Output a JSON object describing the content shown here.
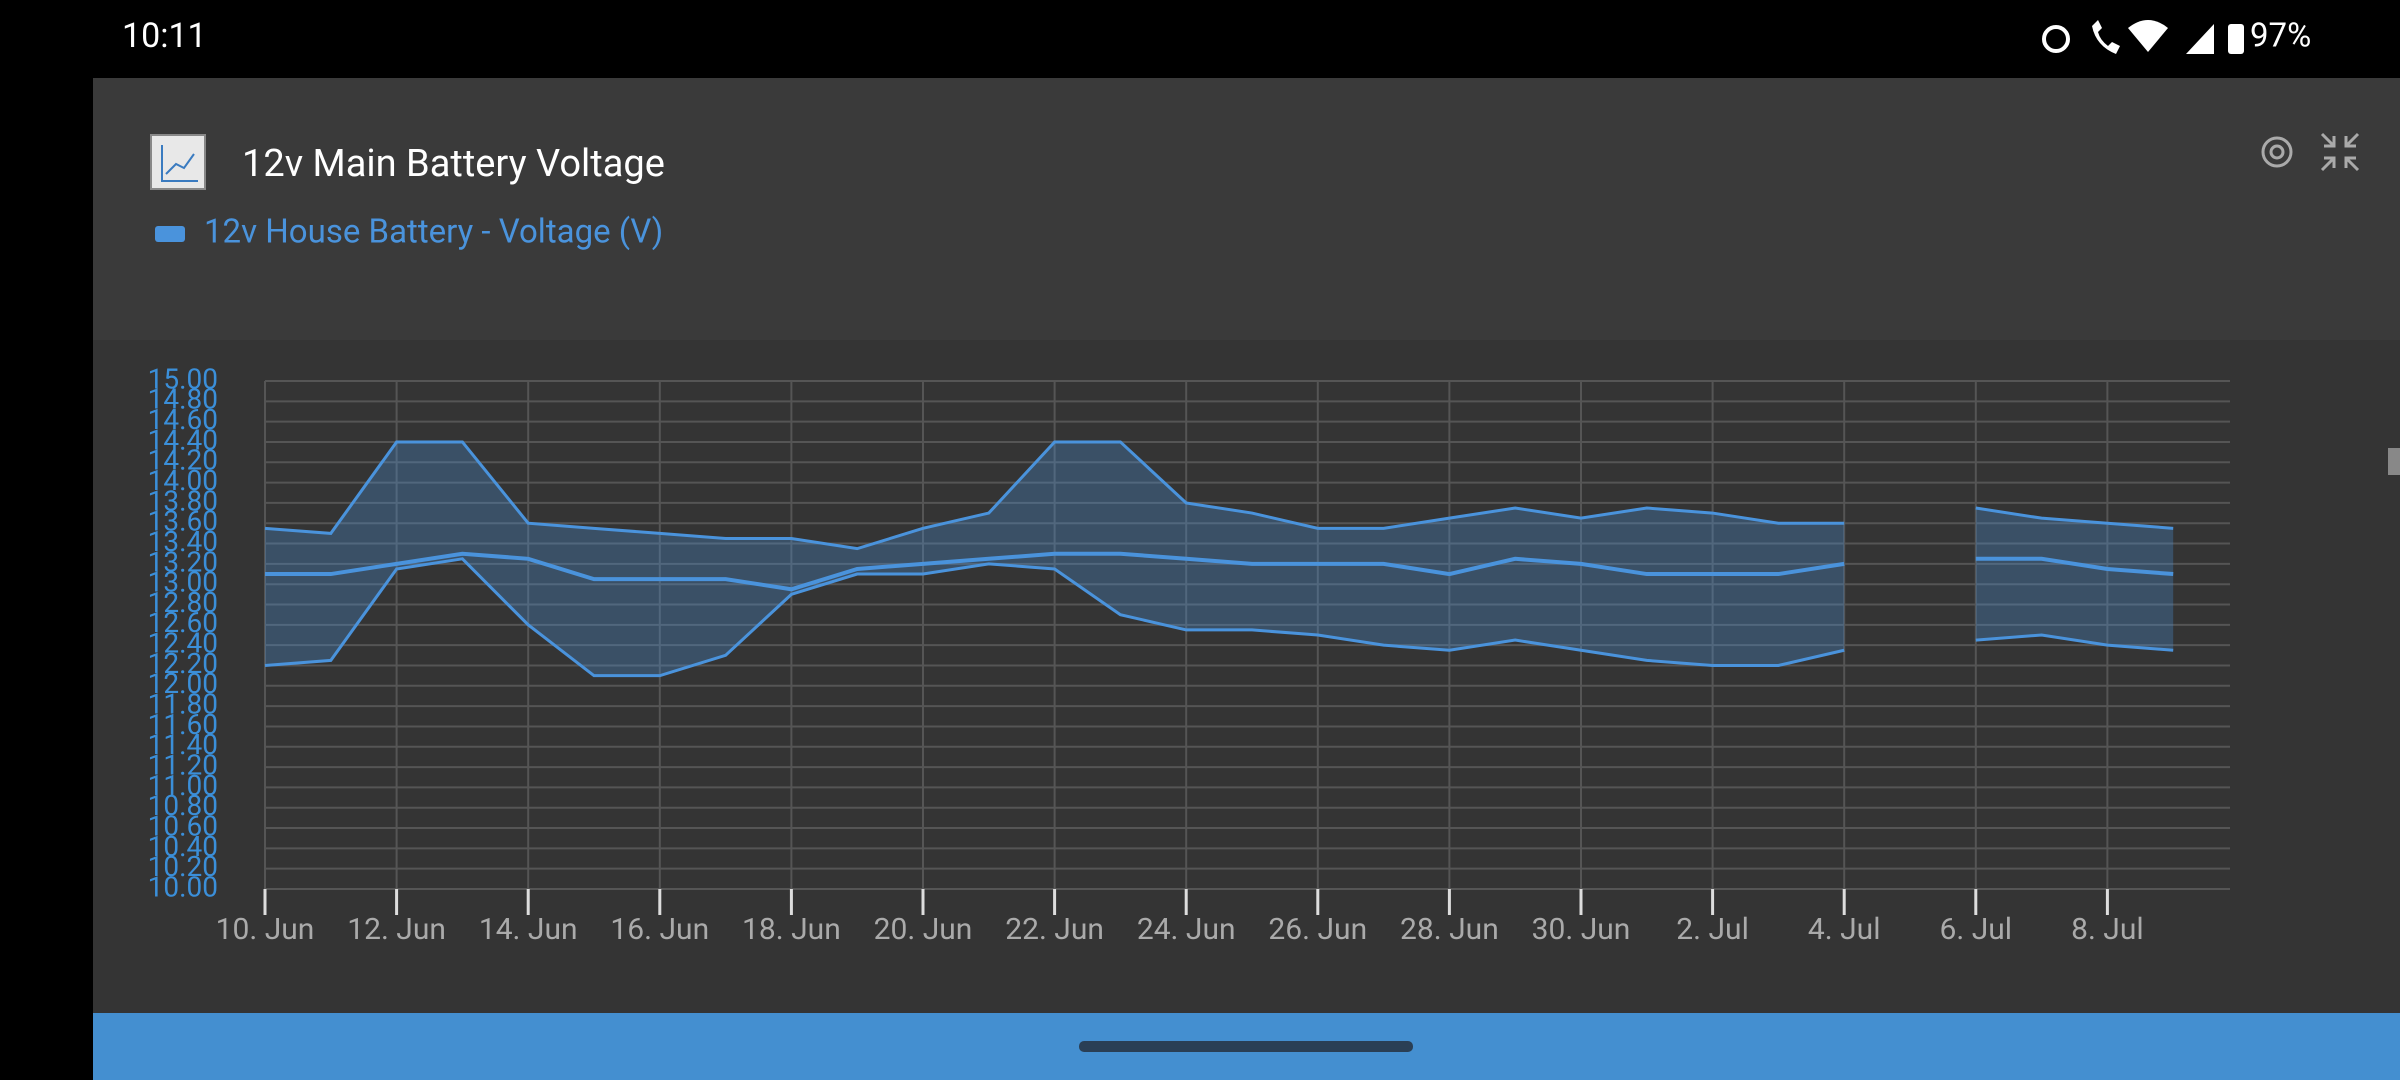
{
  "status_bar": {
    "time": "10:11",
    "battery": "97%"
  },
  "chart_data": {
    "type": "range-line",
    "title": "12v Main Battery Voltage",
    "x": [
      "10. Jun",
      "11. Jun",
      "12. Jun",
      "13. Jun",
      "14. Jun",
      "15. Jun",
      "16. Jun",
      "17. Jun",
      "18. Jun",
      "19. Jun",
      "20. Jun",
      "21. Jun",
      "22. Jun",
      "23. Jun",
      "24. Jun",
      "25. Jun",
      "26. Jun",
      "27. Jun",
      "28. Jun",
      "29. Jun",
      "30. Jun",
      "1. Jul",
      "2. Jul",
      "3. Jul",
      "4. Jul",
      "5. Jul",
      "6. Jul",
      "7. Jul",
      "8. Jul",
      "9. Jul"
    ],
    "series": [
      {
        "name": "12v House Battery  - Voltage (V)",
        "color": "#4a93dc",
        "values": [
          13.1,
          13.1,
          13.2,
          13.3,
          13.25,
          13.05,
          13.05,
          13.05,
          12.95,
          13.15,
          13.2,
          13.25,
          13.3,
          13.3,
          13.25,
          13.2,
          13.2,
          13.2,
          13.1,
          13.25,
          13.2,
          13.1,
          13.1,
          13.1,
          13.2,
          null,
          13.25,
          13.25,
          13.15,
          13.1
        ],
        "low": [
          12.2,
          12.25,
          13.15,
          13.25,
          12.6,
          12.1,
          12.1,
          12.3,
          12.9,
          13.1,
          13.1,
          13.2,
          13.15,
          12.7,
          12.55,
          12.55,
          12.5,
          12.4,
          12.35,
          12.45,
          12.35,
          12.25,
          12.2,
          12.2,
          12.35,
          null,
          12.45,
          12.5,
          12.4,
          12.35
        ],
        "high": [
          13.55,
          13.5,
          14.4,
          14.4,
          13.6,
          13.55,
          13.5,
          13.45,
          13.45,
          13.35,
          13.55,
          13.7,
          14.4,
          14.4,
          13.8,
          13.7,
          13.55,
          13.55,
          13.65,
          13.75,
          13.65,
          13.75,
          13.7,
          13.6,
          13.6,
          null,
          13.75,
          13.65,
          13.6,
          13.55
        ]
      }
    ],
    "xticks": [
      "10. Jun",
      "12. Jun",
      "14. Jun",
      "16. Jun",
      "18. Jun",
      "20. Jun",
      "22. Jun",
      "24. Jun",
      "26. Jun",
      "28. Jun",
      "30. Jun",
      "2. Jul",
      "4. Jul",
      "6. Jul",
      "8. Jul"
    ],
    "ylim": [
      10,
      15
    ],
    "yticks": [
      {
        "value": 10,
        "label": "10.00"
      },
      {
        "value": 10.2,
        "label": "10.20"
      },
      {
        "value": 10.4,
        "label": "10.40"
      },
      {
        "value": 10.6,
        "label": "10.60"
      },
      {
        "value": 10.8,
        "label": "10.80"
      },
      {
        "value": 11,
        "label": "11.00"
      },
      {
        "value": 11.2,
        "label": "11.20"
      },
      {
        "value": 11.4,
        "label": "11.40"
      },
      {
        "value": 11.6,
        "label": "11.60"
      },
      {
        "value": 11.8,
        "label": "11.80"
      },
      {
        "value": 12,
        "label": "12.00"
      },
      {
        "value": 12.2,
        "label": "12.20"
      },
      {
        "value": 12.4,
        "label": "12.40"
      },
      {
        "value": 12.6,
        "label": "12.60"
      },
      {
        "value": 12.8,
        "label": "12.80"
      },
      {
        "value": 13,
        "label": "13.00"
      },
      {
        "value": 13.2,
        "label": "13.20"
      },
      {
        "value": 13.4,
        "label": "13.40"
      },
      {
        "value": 13.6,
        "label": "13.60"
      },
      {
        "value": 13.8,
        "label": "13.80"
      },
      {
        "value": 14,
        "label": "14.00"
      },
      {
        "value": 14.2,
        "label": "14.20"
      },
      {
        "value": 14.4,
        "label": "14.40"
      },
      {
        "value": 14.6,
        "label": "14.60"
      },
      {
        "value": 14.8,
        "label": "14.80"
      },
      {
        "value": 15,
        "label": "15.00"
      }
    ],
    "grid": true
  }
}
